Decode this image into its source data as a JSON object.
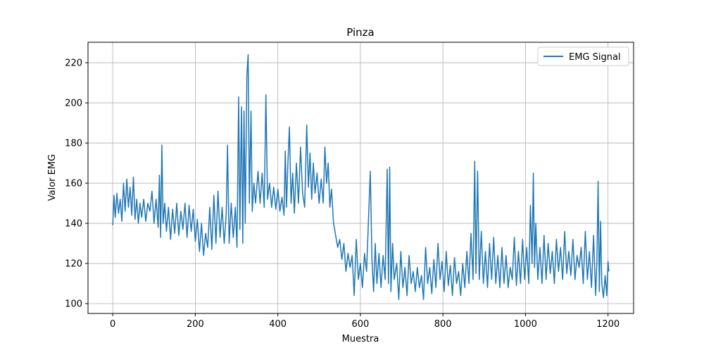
{
  "chart_data": {
    "type": "line",
    "title": "Pinza",
    "x_label": "Muestra",
    "y_label": "Valor EMG",
    "xlim": [
      -60,
      1262
    ],
    "ylim": [
      95.1,
      230.2
    ],
    "xticks": [
      0,
      200,
      400,
      600,
      800,
      1000,
      1200
    ],
    "yticks": [
      100,
      120,
      140,
      160,
      180,
      200,
      220
    ],
    "grid": true,
    "legend": "upper right",
    "x": [
      0,
      3,
      6,
      10,
      14,
      18,
      22,
      26,
      30,
      34,
      38,
      42,
      46,
      50,
      54,
      58,
      62,
      66,
      70,
      75,
      80,
      85,
      90,
      95,
      100,
      105,
      110,
      113,
      116,
      119,
      122,
      126,
      130,
      135,
      140,
      145,
      150,
      155,
      160,
      165,
      170,
      175,
      180,
      185,
      190,
      195,
      200,
      205,
      210,
      215,
      220,
      225,
      230,
      235,
      240,
      245,
      250,
      255,
      260,
      265,
      270,
      275,
      278,
      282,
      287,
      292,
      297,
      301,
      305,
      308,
      312,
      315,
      318,
      321,
      325,
      328,
      331,
      335,
      338,
      342,
      346,
      352,
      357,
      362,
      367,
      371,
      375,
      380,
      385,
      390,
      395,
      400,
      405,
      410,
      415,
      418,
      421,
      424,
      428,
      432,
      436,
      440,
      445,
      450,
      455,
      460,
      465,
      470,
      474,
      478,
      482,
      486,
      490,
      495,
      500,
      505,
      510,
      514,
      518,
      522,
      526,
      530,
      535,
      540,
      545,
      550,
      555,
      560,
      565,
      570,
      575,
      580,
      585,
      590,
      595,
      600,
      605,
      610,
      615,
      620,
      624,
      628,
      632,
      636,
      640,
      645,
      650,
      655,
      660,
      665,
      668,
      671,
      674,
      678,
      682,
      688,
      693,
      698,
      703,
      708,
      713,
      718,
      723,
      728,
      733,
      738,
      743,
      748,
      753,
      758,
      763,
      768,
      773,
      778,
      783,
      788,
      793,
      798,
      803,
      808,
      813,
      818,
      823,
      828,
      833,
      838,
      843,
      848,
      853,
      858,
      863,
      868,
      873,
      877,
      880,
      884,
      888,
      893,
      898,
      903,
      908,
      913,
      918,
      923,
      928,
      933,
      938,
      943,
      948,
      953,
      958,
      963,
      968,
      973,
      978,
      983,
      988,
      993,
      998,
      1003,
      1008,
      1012,
      1016,
      1019,
      1022,
      1025,
      1030,
      1035,
      1040,
      1045,
      1050,
      1055,
      1060,
      1065,
      1070,
      1075,
      1080,
      1085,
      1090,
      1095,
      1100,
      1105,
      1110,
      1115,
      1120,
      1125,
      1130,
      1135,
      1140,
      1145,
      1150,
      1155,
      1160,
      1165,
      1170,
      1173,
      1176,
      1179,
      1182,
      1185,
      1189,
      1193,
      1197,
      1200,
      1202
    ],
    "series": [
      {
        "name": "EMG Signal",
        "color": "#1f77b4",
        "values": [
          139,
          154,
          143,
          155,
          145,
          152,
          141,
          160,
          146,
          162,
          148,
          158,
          144,
          163,
          142,
          152,
          140,
          150,
          143,
          152,
          141,
          150,
          146,
          156,
          140,
          152,
          138,
          164,
          133,
          179,
          140,
          150,
          136,
          148,
          132,
          147,
          135,
          150,
          134,
          146,
          137,
          150,
          133,
          149,
          136,
          147,
          131,
          142,
          126,
          140,
          124,
          135,
          128,
          148,
          127,
          154,
          130,
          156,
          133,
          148,
          130,
          145,
          179,
          130,
          150,
          133,
          148,
          128,
          203,
          137,
          198,
          130,
          196,
          140,
          214,
          224,
          150,
          196,
          146,
          160,
          150,
          166,
          150,
          165,
          148,
          204,
          152,
          160,
          148,
          158,
          147,
          157,
          146,
          153,
          144,
          176,
          148,
          168,
          188,
          150,
          165,
          145,
          170,
          150,
          178,
          155,
          148,
          189,
          158,
          175,
          152,
          170,
          155,
          165,
          150,
          162,
          150,
          178,
          160,
          170,
          148,
          157,
          140,
          134,
          128,
          132,
          122,
          130,
          116,
          125,
          118,
          124,
          104,
          132,
          112,
          120,
          108,
          125,
          116,
          144,
          166,
          122,
          106,
          130,
          110,
          125,
          108,
          124,
          112,
          167,
          110,
          168,
          106,
          130,
          112,
          120,
          102,
          126,
          108,
          118,
          104,
          124,
          110,
          116,
          106,
          118,
          108,
          114,
          102,
          128,
          110,
          118,
          105,
          122,
          108,
          130,
          112,
          121,
          106,
          126,
          109,
          119,
          104,
          123,
          110,
          116,
          104,
          120,
          108,
          126,
          110,
          135,
          112,
          171,
          115,
          166,
          112,
          136,
          110,
          126,
          108,
          130,
          112,
          133,
          110,
          124,
          108,
          128,
          110,
          124,
          108,
          118,
          112,
          133,
          109,
          126,
          110,
          132,
          112,
          128,
          110,
          149,
          120,
          165,
          118,
          140,
          112,
          128,
          110,
          134,
          112,
          130,
          115,
          126,
          110,
          132,
          116,
          128,
          112,
          136,
          115,
          126,
          114,
          132,
          112,
          124,
          118,
          128,
          110,
          136,
          112,
          126,
          108,
          134,
          104,
          120,
          161,
          106,
          141,
          110,
          103,
          114,
          104,
          121,
          116
        ]
      }
    ]
  }
}
